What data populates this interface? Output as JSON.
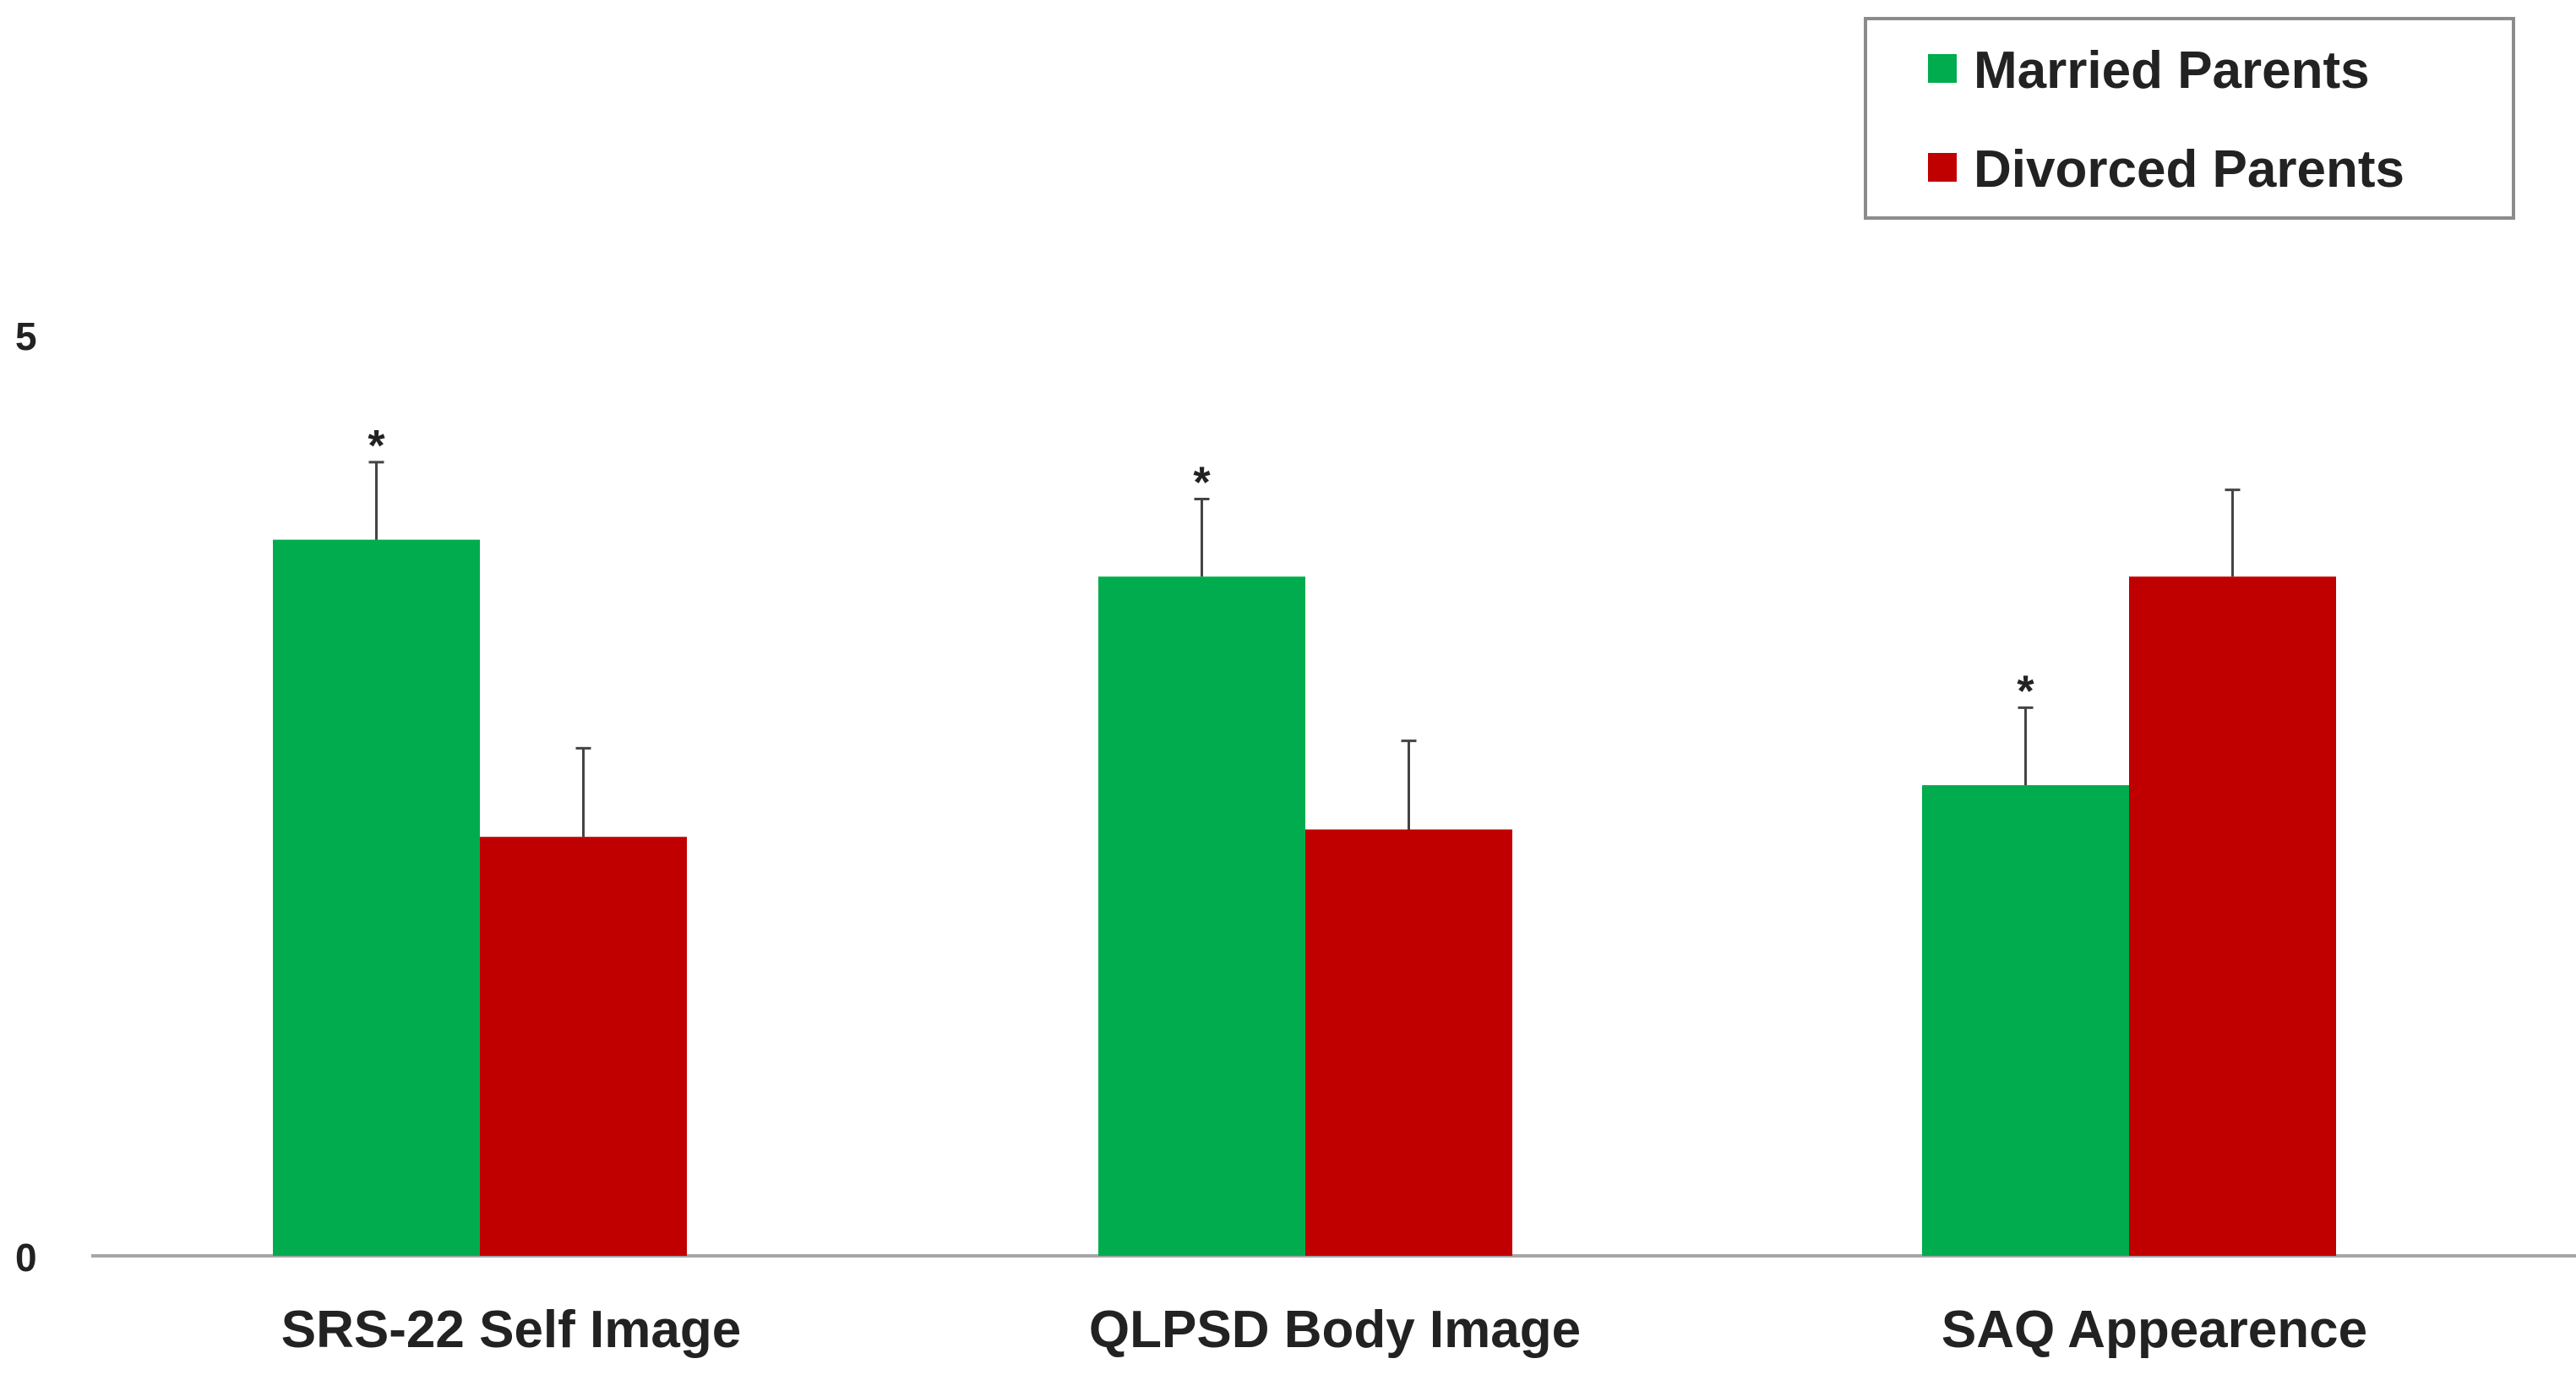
{
  "chart_data": {
    "type": "bar",
    "title": "",
    "xlabel": "",
    "ylabel": "",
    "ylim": [
      0,
      5
    ],
    "yticks": [
      "0",
      "5"
    ],
    "grid": false,
    "legend_position": "top-right",
    "categories": [
      "SRS-22 Self Image",
      "QLPSD Body Image",
      "SAQ Appearence"
    ],
    "series": [
      {
        "name": "Married Parents",
        "color": "#00AC4D",
        "values": [
          3.88,
          3.68,
          2.55
        ],
        "errors": [
          0.42,
          0.42,
          0.42
        ],
        "significance": [
          "*",
          "*",
          "*"
        ]
      },
      {
        "name": "Divorced Parents",
        "color": "#C00000",
        "values": [
          2.27,
          2.31,
          3.68
        ],
        "errors": [
          0.48,
          0.48,
          0.47
        ],
        "significance": [
          "",
          "",
          ""
        ]
      }
    ]
  }
}
